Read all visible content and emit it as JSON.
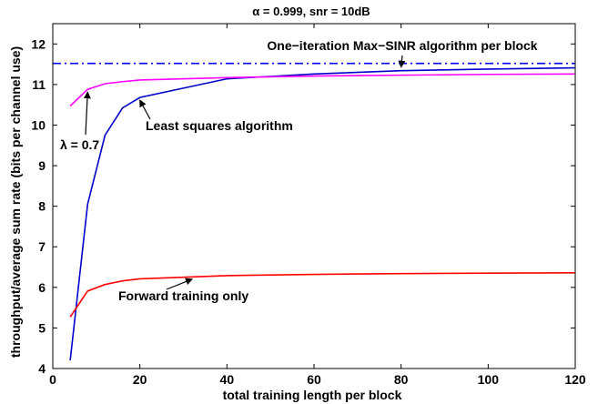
{
  "chart_data": {
    "type": "line",
    "title": "α = 0.999, snr = 10dB",
    "xlabel": "total training length per block",
    "ylabel": "throughput/average sum rate (bits per channel use)",
    "xlim": [
      0,
      120
    ],
    "ylim": [
      4,
      12.5
    ],
    "xticks": [
      0,
      20,
      40,
      60,
      80,
      100,
      120
    ],
    "yticks": [
      4,
      5,
      6,
      7,
      8,
      9,
      10,
      11,
      12
    ],
    "grid": false,
    "series": [
      {
        "name": "One−iteration Max−SINR algorithm per block",
        "color": "#0000ff",
        "style": "dashdot",
        "x": [
          0,
          120
        ],
        "y": [
          11.52,
          11.52
        ]
      },
      {
        "name": "Least squares algorithm",
        "color": "#0000cc",
        "style": "solid",
        "x": [
          4,
          8,
          12,
          16,
          20,
          40,
          60,
          80,
          100,
          120
        ],
        "y": [
          4.2,
          8.05,
          9.75,
          10.42,
          10.68,
          11.14,
          11.26,
          11.34,
          11.38,
          11.41
        ]
      },
      {
        "name": "λ = 0.7",
        "color": "#ff00ff",
        "style": "solid",
        "x": [
          4,
          8,
          12,
          16,
          20,
          40,
          60,
          80,
          100,
          120
        ],
        "y": [
          10.47,
          10.88,
          11.02,
          11.07,
          11.11,
          11.17,
          11.21,
          11.23,
          11.25,
          11.26
        ]
      },
      {
        "name": "Forward training only",
        "color": "#ff0000",
        "style": "solid",
        "x": [
          4,
          8,
          12,
          16,
          20,
          40,
          60,
          80,
          100,
          120
        ],
        "y": [
          5.27,
          5.91,
          6.07,
          6.16,
          6.21,
          6.29,
          6.32,
          6.34,
          6.35,
          6.36
        ]
      }
    ],
    "annotations": [
      {
        "text": "One−iteration Max−SINR algorithm per block",
        "target_x": 80,
        "target_y": 11.52
      },
      {
        "text": "Least squares algorithm",
        "target_x": 20,
        "target_y": 10.68
      },
      {
        "text": "λ = 0.7",
        "target_x": 8,
        "target_y": 10.88
      },
      {
        "text": "Forward training only",
        "target_x": 32,
        "target_y": 6.27
      }
    ]
  }
}
